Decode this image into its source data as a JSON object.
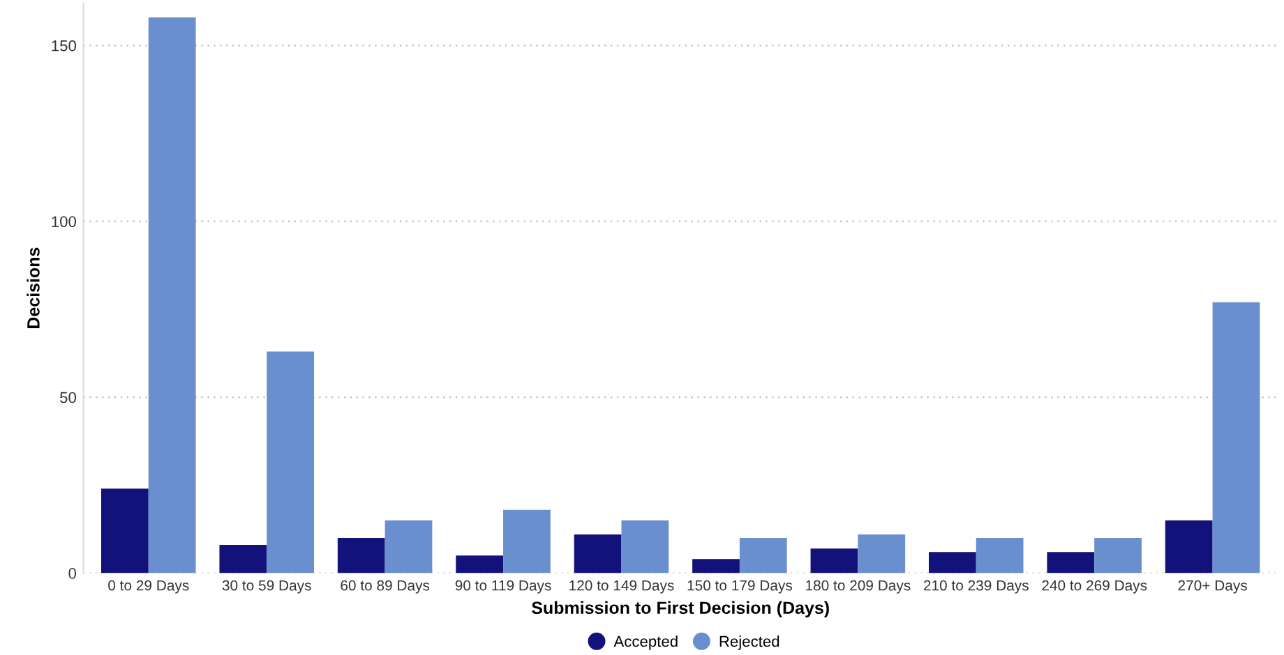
{
  "chart_data": {
    "type": "bar",
    "xlabel": "Submission to First Decision (Days)",
    "ylabel": "Decisions",
    "categories": [
      "0 to 29 Days",
      "30 to 59 Days",
      "60 to 89 Days",
      "90 to 119 Days",
      "120 to 149 Days",
      "150 to 179 Days",
      "180 to 209 Days",
      "210 to 239 Days",
      "240 to 269 Days",
      "270+ Days"
    ],
    "series": [
      {
        "name": "Accepted",
        "color": "#12127a",
        "values": [
          24,
          8,
          10,
          5,
          11,
          4,
          7,
          6,
          6,
          15
        ]
      },
      {
        "name": "Rejected",
        "color": "#6a8fce",
        "values": [
          158,
          63,
          15,
          18,
          15,
          10,
          11,
          10,
          10,
          77
        ]
      }
    ],
    "ylim": [
      0,
      162
    ],
    "yticks": [
      0,
      50,
      100,
      150
    ],
    "grid": "y",
    "legend": "bottom",
    "marker": "circle"
  }
}
